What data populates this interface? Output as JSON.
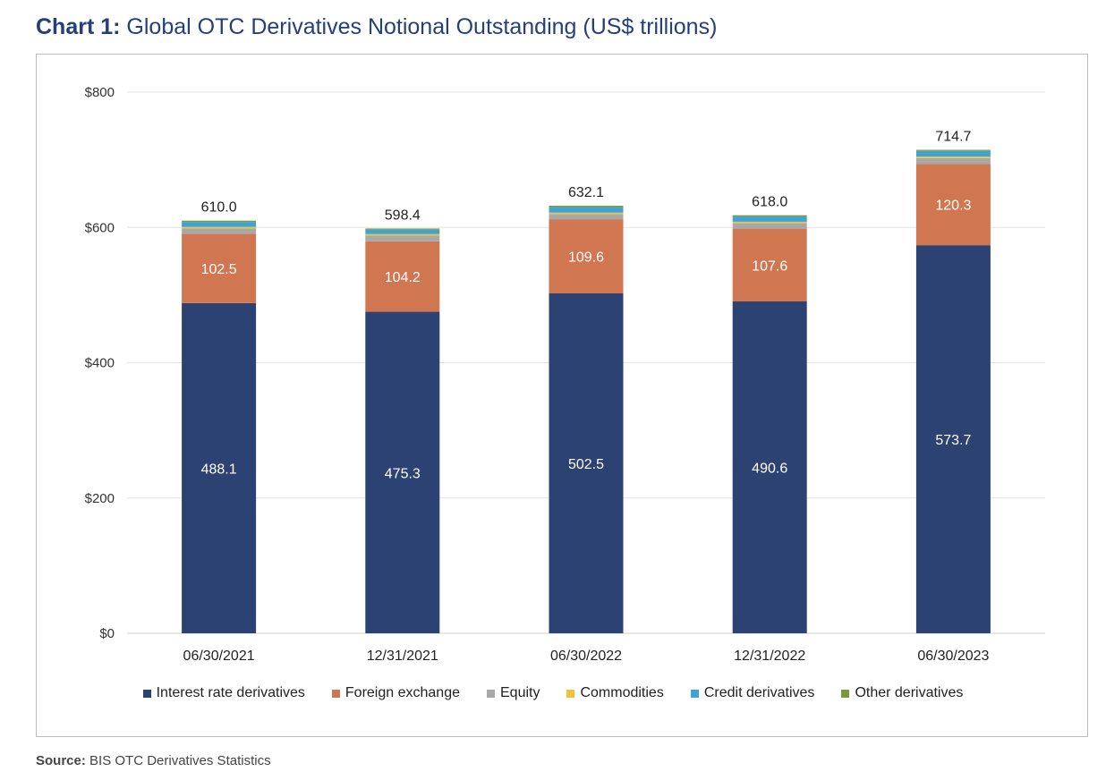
{
  "header": {
    "title_lead": "Chart 1:",
    "title_rest": "Global OTC Derivatives Notional Outstanding (US$ trillions)"
  },
  "footer": {
    "source_label": "Source:",
    "source_text": "BIS OTC Derivatives Statistics"
  },
  "chart_data": {
    "type": "bar",
    "stacked": true,
    "title": "Global OTC Derivatives Notional Outstanding (US$ trillions)",
    "categories": [
      "06/30/2021",
      "12/31/2021",
      "06/30/2022",
      "12/31/2022",
      "06/30/2023"
    ],
    "y_ticks": [
      {
        "value": 0,
        "label": "$0"
      },
      {
        "value": 200,
        "label": "$200"
      },
      {
        "value": 400,
        "label": "$400"
      },
      {
        "value": 600,
        "label": "$600"
      },
      {
        "value": 800,
        "label": "$800"
      }
    ],
    "ylim": [
      0,
      800
    ],
    "grid": true,
    "legend_position": "bottom",
    "series": [
      {
        "name": "Interest rate derivatives",
        "color": "#2b4272",
        "label_color": "#ffffff",
        "show_labels": true,
        "values": [
          488.1,
          475.3,
          502.5,
          490.6,
          573.7
        ]
      },
      {
        "name": "Foreign exchange",
        "color": "#d07650",
        "label_color": "#ffffff",
        "show_labels": true,
        "values": [
          102.5,
          104.2,
          109.6,
          107.6,
          120.3
        ]
      },
      {
        "name": "Equity",
        "color": "#a8a8a8",
        "show_labels": false,
        "values": [
          8.0,
          8.3,
          7.5,
          8.0,
          8.5
        ]
      },
      {
        "name": "Commodities",
        "color": "#f0c43a",
        "show_labels": false,
        "values": [
          2.2,
          2.4,
          2.3,
          2.2,
          2.3
        ]
      },
      {
        "name": "Credit derivatives",
        "color": "#3fa3d6",
        "show_labels": false,
        "values": [
          7.3,
          6.5,
          8.3,
          7.7,
          8.2
        ]
      },
      {
        "name": "Other derivatives",
        "color": "#7a9a3a",
        "show_labels": false,
        "values": [
          1.9,
          1.7,
          1.9,
          1.9,
          1.7
        ]
      }
    ],
    "totals": [
      "610.0",
      "598.4",
      "632.1",
      "618.0",
      "714.7"
    ]
  }
}
